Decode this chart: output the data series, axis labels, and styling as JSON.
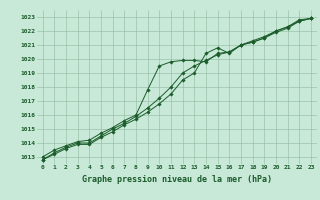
{
  "xlabel": "Graphe pression niveau de la mer (hPa)",
  "bg_color": "#c8e8d8",
  "grid_color": "#90b8a0",
  "line_color": "#1a5c2a",
  "x": [
    0,
    1,
    2,
    3,
    4,
    5,
    6,
    7,
    8,
    9,
    10,
    11,
    12,
    13,
    14,
    15,
    16,
    17,
    18,
    19,
    20,
    21,
    22,
    23
  ],
  "line1": [
    1012.8,
    1013.3,
    1013.7,
    1014.0,
    1014.0,
    1014.5,
    1015.0,
    1015.4,
    1015.9,
    1016.5,
    1017.2,
    1018.0,
    1019.0,
    1019.5,
    1019.9,
    1020.3,
    1020.5,
    1021.0,
    1021.2,
    1021.5,
    1022.0,
    1022.3,
    1022.8,
    1022.9
  ],
  "line2": [
    1013.0,
    1013.5,
    1013.8,
    1014.1,
    1014.2,
    1014.7,
    1015.1,
    1015.6,
    1016.0,
    1017.8,
    1019.5,
    1019.8,
    1019.9,
    1019.9,
    1019.8,
    1020.4,
    1020.5,
    1021.0,
    1021.3,
    1021.6,
    1022.0,
    1022.3,
    1022.7,
    1022.9
  ],
  "line3": [
    1012.8,
    1013.2,
    1013.6,
    1013.9,
    1013.9,
    1014.4,
    1014.8,
    1015.3,
    1015.7,
    1016.2,
    1016.8,
    1017.5,
    1018.5,
    1019.0,
    1020.4,
    1020.8,
    1020.4,
    1021.0,
    1021.2,
    1021.5,
    1021.9,
    1022.2,
    1022.7,
    1022.9
  ],
  "ylim": [
    1012.5,
    1023.5
  ],
  "yticks": [
    1013,
    1014,
    1015,
    1016,
    1017,
    1018,
    1019,
    1020,
    1021,
    1022,
    1023
  ],
  "xticks": [
    0,
    1,
    2,
    3,
    4,
    5,
    6,
    7,
    8,
    9,
    10,
    11,
    12,
    13,
    14,
    15,
    16,
    17,
    18,
    19,
    20,
    21,
    22,
    23
  ],
  "tick_fontsize": 4.5,
  "label_fontsize": 6.0,
  "marker": "D",
  "marker_size": 1.8,
  "line_width": 0.7,
  "xlim": [
    -0.5,
    23.5
  ]
}
